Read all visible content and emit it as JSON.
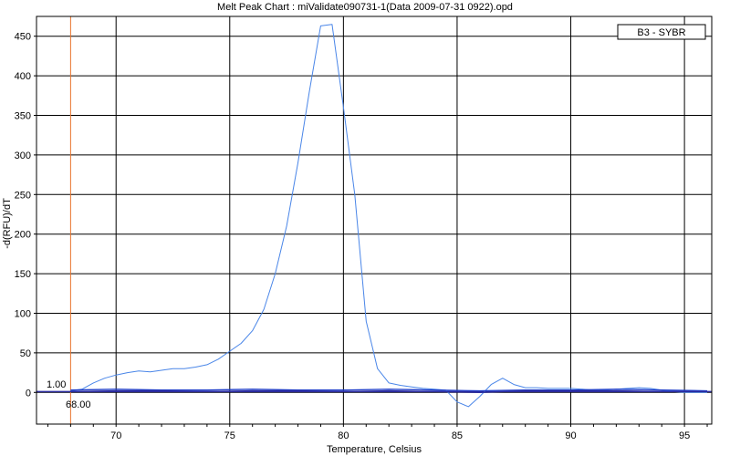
{
  "chart_data": {
    "type": "line",
    "title": "Melt Peak Chart : miValidate090731-1(Data 2009-07-31 0922).opd",
    "xlabel": "Temperature, Celsius",
    "ylabel": "-d(RFU)/dT",
    "xlim": [
      66.5,
      96.2
    ],
    "ylim": [
      -40,
      475
    ],
    "xticks": [
      70,
      75,
      80,
      85,
      90,
      95
    ],
    "yticks": [
      0,
      50,
      100,
      150,
      200,
      250,
      300,
      350,
      400,
      450
    ],
    "grid": true,
    "legend": {
      "position": "top-right",
      "entries": [
        "B3 - SYBR"
      ]
    },
    "marker": {
      "x": 68.0,
      "x_label": "68.00",
      "y": 1.0,
      "y_label": "1.00"
    },
    "series": [
      {
        "name": "B3 - SYBR",
        "color": "#4a86e8",
        "x": [
          68.0,
          68.5,
          69.0,
          69.5,
          70.0,
          70.5,
          71.0,
          71.5,
          72.0,
          72.5,
          73.0,
          73.5,
          74.0,
          74.5,
          75.0,
          75.5,
          76.0,
          76.5,
          77.0,
          77.5,
          78.0,
          78.5,
          79.0,
          79.5,
          80.0,
          80.5,
          81.0,
          81.5,
          82.0,
          82.5,
          83.0,
          83.5,
          84.0,
          84.5,
          85.0,
          85.5,
          86.0,
          86.5,
          87.0,
          87.5,
          88.0,
          88.5,
          89.0,
          89.5,
          90.0,
          90.5,
          91.0,
          91.5,
          92.0,
          92.5,
          93.0,
          93.5,
          94.0,
          94.5,
          95.0,
          95.5,
          96.0
        ],
        "y": [
          2,
          4,
          12,
          18,
          22,
          25,
          27,
          26,
          28,
          30,
          30,
          32,
          35,
          42,
          52,
          62,
          78,
          105,
          150,
          210,
          290,
          380,
          463,
          465,
          360,
          250,
          90,
          30,
          12,
          9,
          7,
          5,
          4,
          3,
          -12,
          -18,
          -5,
          10,
          18,
          10,
          6,
          6,
          5,
          5,
          5,
          4,
          3,
          3,
          4,
          5,
          6,
          5,
          3,
          1,
          0,
          0,
          0
        ]
      },
      {
        "name": "",
        "color": "#1e3cc8",
        "x": [
          68.0,
          70.0,
          72.0,
          74.0,
          76.0,
          78.0,
          80.0,
          82.0,
          84.0,
          86.0,
          88.0,
          90.0,
          92.0,
          94.0,
          96.0
        ],
        "y": [
          3,
          4,
          3,
          3,
          4,
          3,
          3,
          4,
          3,
          2,
          3,
          3,
          4,
          3,
          2
        ]
      },
      {
        "name": "",
        "color": "#2b2b9e",
        "x": [
          68.0,
          70.0,
          72.0,
          74.0,
          76.0,
          78.0,
          80.0,
          82.0,
          84.0,
          86.0,
          88.0,
          90.0,
          92.0,
          94.0,
          96.0
        ],
        "y": [
          1,
          2,
          2,
          1,
          2,
          2,
          1,
          2,
          1,
          0,
          2,
          2,
          2,
          1,
          1
        ]
      }
    ]
  }
}
